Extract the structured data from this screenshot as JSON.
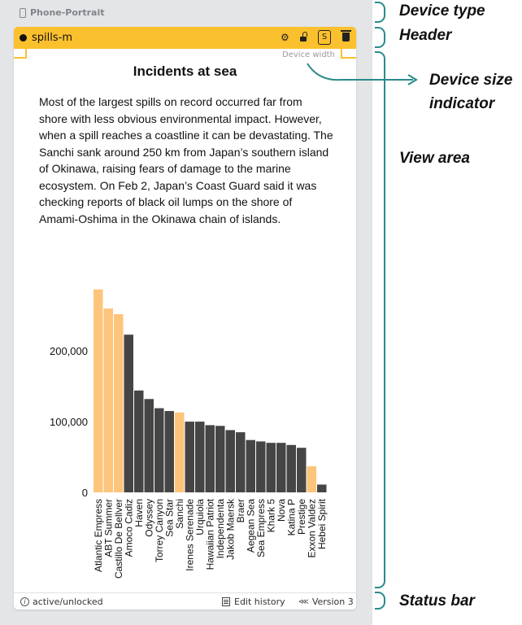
{
  "device_type_label": "Phone-Portrait",
  "header": {
    "title": "spills-m",
    "s_badge": "S"
  },
  "device_width_label": "Device width",
  "chart_title": "Incidents at sea",
  "description": "Most of the largest spills on record occurred far from shore with less obvious environmental impact. However, when a spill reaches a coastline it can be devastating. The Sanchi sank around 250 km from Japan’s southern island of Okinawa, raising fears of damage to the marine ecosystem. On Feb 2, Japan’s Coast Guard said it was checking reports of black oil lumps on the shore of Amami-Oshima in the Okinawa chain of islands.",
  "status": {
    "state": "active/unlocked",
    "edit_history": "Edit history",
    "version": "Version 3"
  },
  "annotations": {
    "device_type": "Device type",
    "header": "Header",
    "device_size": "Device size",
    "indicator": "indicator",
    "view_area": "View area",
    "status_bar": "Status bar"
  },
  "colors": {
    "header_bg": "#fbc02d",
    "highlight_bar": "#fdc57b",
    "normal_bar": "#454545",
    "annotation_line": "#2a8a8c"
  },
  "chart_data": {
    "type": "bar",
    "categories": [
      "Atlantic Empress",
      "ABT Summer",
      "Castillo De Bellver",
      "Amoco Cadiz",
      "Haven",
      "Odyssey",
      "Torrey Canyon",
      "Sea Star",
      "Sanchi",
      "Irenes Serenade",
      "Urquiola",
      "Hawaiian Patriot",
      "Independenta",
      "Jakob Maersk",
      "Braer",
      "Aegean Sea",
      "Sea Empress",
      "Khark 5",
      "Nova",
      "Katina P",
      "Prestige",
      "Exxon Valdez",
      "Hebei Spirit"
    ],
    "values": [
      287000,
      260000,
      252000,
      223000,
      144000,
      132000,
      119000,
      115000,
      113000,
      100000,
      100000,
      95000,
      94000,
      88000,
      85000,
      74000,
      72000,
      70000,
      70000,
      67000,
      63000,
      37000,
      11000
    ],
    "highlighted": [
      "Atlantic Empress",
      "ABT Summer",
      "Castillo De Bellver",
      "Sanchi",
      "Exxon Valdez"
    ],
    "yticks": [
      "0",
      "100,000",
      "200,000"
    ],
    "ytick_values": [
      0,
      100000,
      200000
    ],
    "ylim": [
      0,
      290000
    ]
  }
}
